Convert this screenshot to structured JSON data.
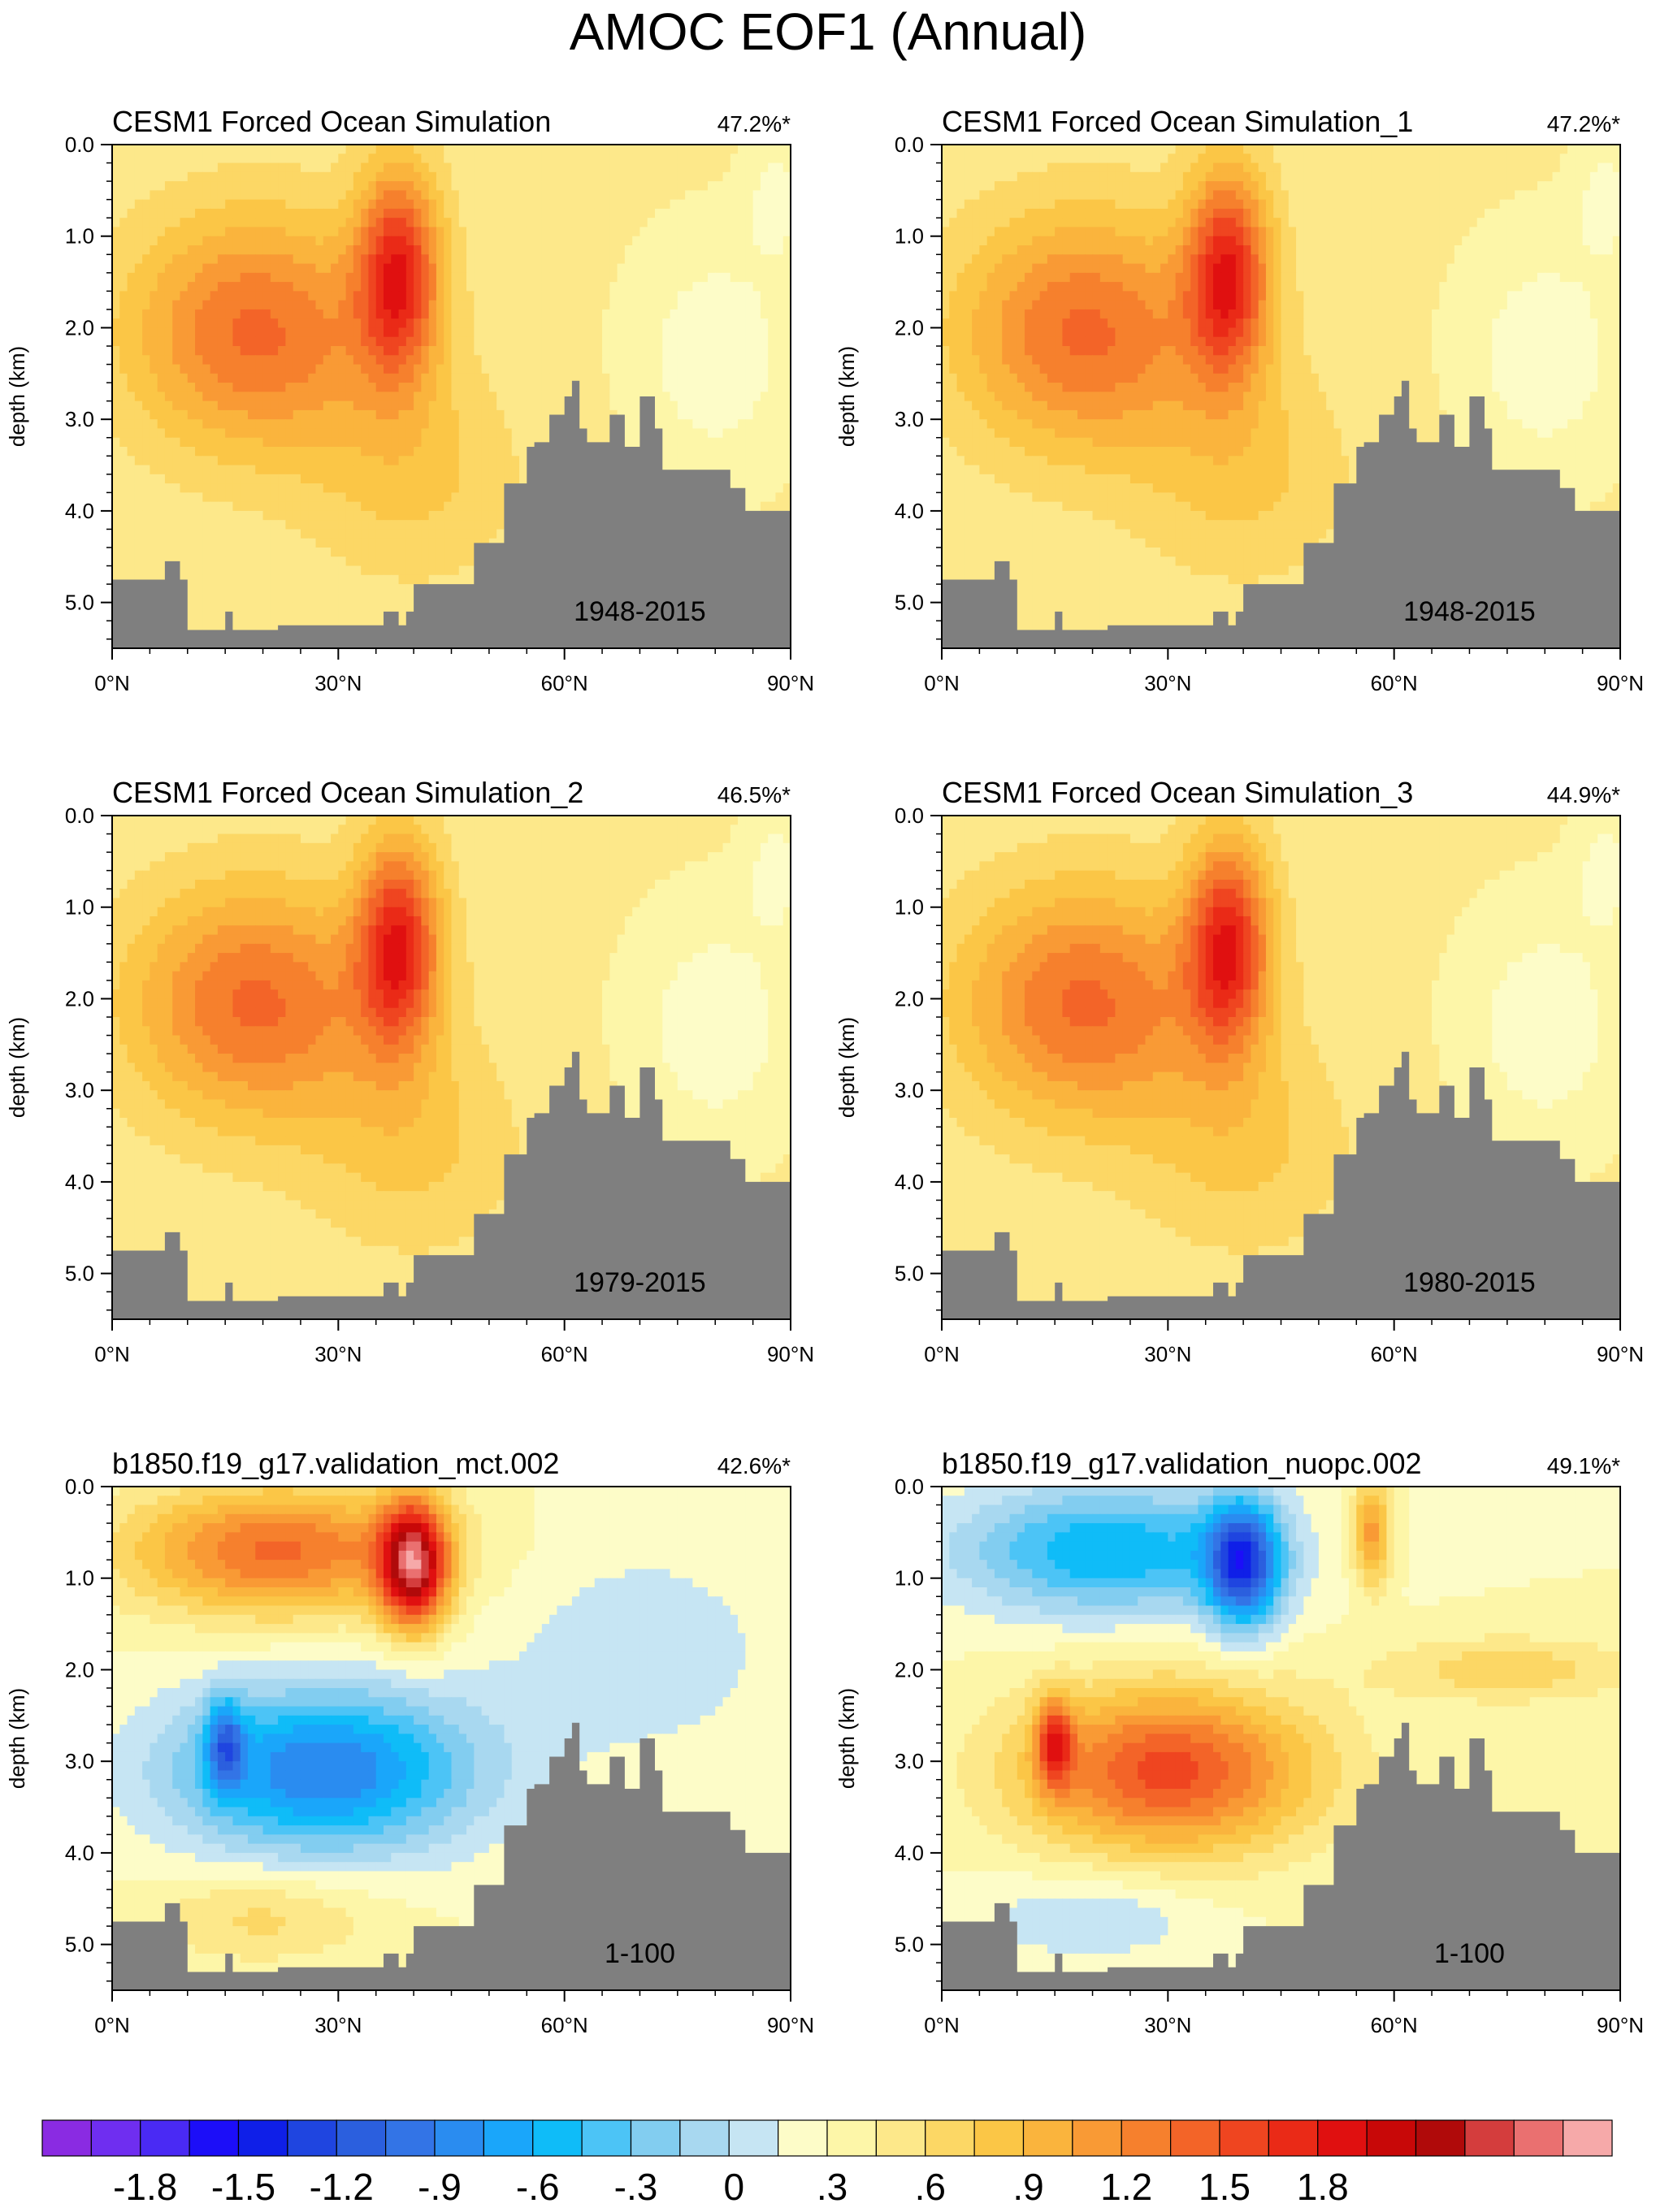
{
  "title": "AMOC EOF1 (Annual)",
  "chart_data": [
    {
      "type": "contour",
      "title": "CESM1 Forced Ocean Simulation",
      "variance": "47.2%*",
      "years": "1948-2015",
      "xlabel": "",
      "ylabel": "depth (km)",
      "xlim": [
        0,
        90
      ],
      "ylim": [
        5.5,
        0.0
      ],
      "xticks": [
        "0°N",
        "30°N",
        "60°N",
        "90°N"
      ],
      "yticks": [
        "0.0",
        "1.0",
        "2.0",
        "3.0",
        "4.0",
        "5.0"
      ],
      "pattern": "positive-cell",
      "centers": [
        {
          "lat": 38,
          "depth": 1.4,
          "value": 1.5
        },
        {
          "lat": 15,
          "depth": 2.0,
          "value": 0.75
        }
      ]
    },
    {
      "type": "contour",
      "title": "CESM1 Forced Ocean Simulation_1",
      "variance": "47.2%*",
      "years": "1948-2015",
      "xlabel": "",
      "ylabel": "depth (km)",
      "xlim": [
        0,
        90
      ],
      "ylim": [
        5.5,
        0.0
      ],
      "xticks": [
        "0°N",
        "30°N",
        "60°N",
        "90°N"
      ],
      "yticks": [
        "0.0",
        "1.0",
        "2.0",
        "3.0",
        "4.0",
        "5.0"
      ],
      "pattern": "positive-cell",
      "centers": [
        {
          "lat": 38,
          "depth": 1.4,
          "value": 1.5
        },
        {
          "lat": 15,
          "depth": 2.0,
          "value": 0.75
        }
      ]
    },
    {
      "type": "contour",
      "title": "CESM1 Forced Ocean Simulation_2",
      "variance": "46.5%*",
      "years": "1979-2015",
      "xlabel": "",
      "ylabel": "depth (km)",
      "xlim": [
        0,
        90
      ],
      "ylim": [
        5.5,
        0.0
      ],
      "xticks": [
        "0°N",
        "30°N",
        "60°N",
        "90°N"
      ],
      "yticks": [
        "0.0",
        "1.0",
        "2.0",
        "3.0",
        "4.0",
        "5.0"
      ],
      "pattern": "positive-cell",
      "centers": [
        {
          "lat": 37,
          "depth": 1.5,
          "value": 1.6
        },
        {
          "lat": 18,
          "depth": 2.1,
          "value": 0.8
        }
      ]
    },
    {
      "type": "contour",
      "title": "CESM1 Forced Ocean Simulation_3",
      "variance": "44.9%*",
      "years": "1980-2015",
      "xlabel": "",
      "ylabel": "depth (km)",
      "xlim": [
        0,
        90
      ],
      "ylim": [
        5.5,
        0.0
      ],
      "xticks": [
        "0°N",
        "30°N",
        "60°N",
        "90°N"
      ],
      "yticks": [
        "0.0",
        "1.0",
        "2.0",
        "3.0",
        "4.0",
        "5.0"
      ],
      "pattern": "positive-cell",
      "centers": [
        {
          "lat": 37,
          "depth": 1.5,
          "value": 1.6
        },
        {
          "lat": 18,
          "depth": 2.1,
          "value": 0.8
        }
      ]
    },
    {
      "type": "contour",
      "title": "b1850.f19_g17.validation_mct.002",
      "variance": "42.6%*",
      "years": "1-100",
      "xlabel": "",
      "ylabel": "depth (km)",
      "xlim": [
        0,
        90
      ],
      "ylim": [
        5.5,
        0.0
      ],
      "xticks": [
        "0°N",
        "30°N",
        "60°N",
        "90°N"
      ],
      "yticks": [
        "0.0",
        "1.0",
        "2.0",
        "3.0",
        "4.0",
        "5.0"
      ],
      "pattern": "upper-positive-lower-negative",
      "centers": [
        {
          "lat": 40,
          "depth": 0.8,
          "value": 1.8
        },
        {
          "lat": 15,
          "depth": 2.8,
          "value": -1.5
        },
        {
          "lat": 38,
          "depth": 3.2,
          "value": -1.0
        }
      ]
    },
    {
      "type": "contour",
      "title": "b1850.f19_g17.validation_nuopc.002",
      "variance": "49.1%*",
      "years": "1-100",
      "xlabel": "",
      "ylabel": "depth (km)",
      "xlim": [
        0,
        90
      ],
      "ylim": [
        5.5,
        0.0
      ],
      "xticks": [
        "0°N",
        "30°N",
        "60°N",
        "90°N"
      ],
      "yticks": [
        "0.0",
        "1.0",
        "2.0",
        "3.0",
        "4.0",
        "5.0"
      ],
      "pattern": "upper-negative-lower-positive",
      "centers": [
        {
          "lat": 40,
          "depth": 0.8,
          "value": -1.5
        },
        {
          "lat": 15,
          "depth": 2.8,
          "value": 1.8
        },
        {
          "lat": 38,
          "depth": 3.2,
          "value": 1.2
        }
      ]
    }
  ],
  "colorbar": {
    "labels": [
      "-1.8",
      "-1.5",
      "-1.2",
      "-.9",
      "-.6",
      "-.3",
      "0",
      ".3",
      ".6",
      ".9",
      "1.2",
      "1.5",
      "1.8"
    ],
    "colors": [
      "#8a2be2",
      "#6f2ef0",
      "#4a2af4",
      "#1c0ef8",
      "#0f1fe8",
      "#1f45e0",
      "#2b5fde",
      "#3374e6",
      "#2a8cf0",
      "#1aa6fa",
      "#0fbcf8",
      "#4cc4f6",
      "#82cdf0",
      "#a8d8f0",
      "#c6e5f3",
      "#fdfcc8",
      "#fdf6a8",
      "#fde88a",
      "#fcd765",
      "#fbc646",
      "#fab43d",
      "#f99a35",
      "#f6802d",
      "#f36428",
      "#ef4520",
      "#ea2a17",
      "#e01010",
      "#c80808",
      "#b00a0a",
      "#d43d3d",
      "#ea7070",
      "#f6a9a9"
    ]
  },
  "style": {
    "land": "#7f7f7f",
    "axis": "#000000"
  }
}
